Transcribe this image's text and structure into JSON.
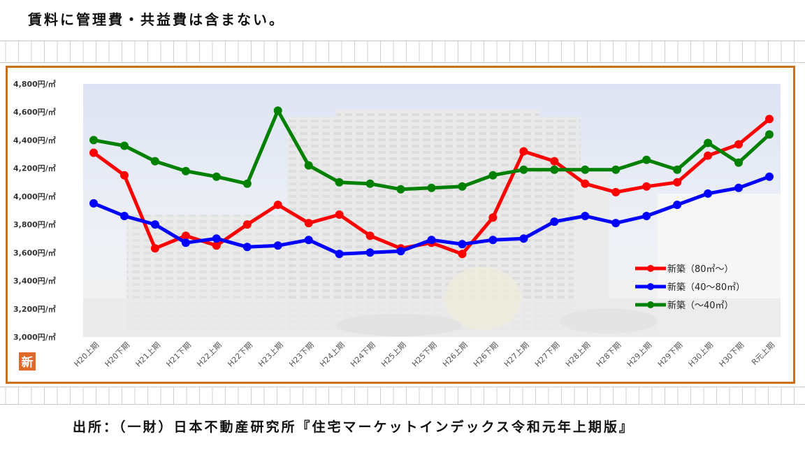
{
  "note": "賃料に管理費・共益費は含まない。",
  "source": "出所：（一財）日本不動産研究所『住宅マーケットインデックス令和元年上期版』",
  "badge": "新",
  "colors": {
    "frame": "#c8701a",
    "badge": "#e06a2a"
  },
  "chart_data": {
    "type": "line",
    "title": "",
    "xlabel": "",
    "ylabel": "",
    "ylim": [
      3000,
      4800
    ],
    "yticks": [
      3000,
      3200,
      3400,
      3600,
      3800,
      4000,
      4200,
      4400,
      4600,
      4800
    ],
    "ytick_labels": [
      "3,000円/㎡",
      "3,200円/㎡",
      "3,400円/㎡",
      "3,600円/㎡",
      "3,800円/㎡",
      "4,000円/㎡",
      "4,200円/㎡",
      "4,400円/㎡",
      "4,600円/㎡",
      "4,800円/㎡"
    ],
    "categories": [
      "H20上期",
      "H20下期",
      "H21上期",
      "H21下期",
      "H22上期",
      "H22下期",
      "H23上期",
      "H23下期",
      "H24上期",
      "H24下期",
      "H25上期",
      "H25下期",
      "H26上期",
      "H26下期",
      "H27上期",
      "H27下期",
      "H28上期",
      "H28下期",
      "H29上期",
      "H29下期",
      "H30上期",
      "H30下期",
      "R元上期"
    ],
    "legend_position": "bottom-right",
    "grid": false,
    "series": [
      {
        "name": "新築（80㎡～）",
        "color": "#ff0000",
        "values": [
          4310,
          4150,
          3630,
          3720,
          3650,
          3800,
          3940,
          3810,
          3870,
          3720,
          3630,
          3670,
          3590,
          3850,
          4320,
          4250,
          4090,
          4030,
          4070,
          4100,
          4290,
          4370,
          4550
        ]
      },
      {
        "name": "新築（40～80㎡）",
        "color": "#0000ff",
        "values": [
          3950,
          3860,
          3800,
          3670,
          3700,
          3640,
          3650,
          3690,
          3590,
          3600,
          3610,
          3690,
          3660,
          3690,
          3700,
          3820,
          3860,
          3810,
          3860,
          3940,
          4020,
          4060,
          4140
        ]
      },
      {
        "name": "新築（～40㎡）",
        "color": "#008000",
        "values": [
          4400,
          4360,
          4250,
          4180,
          4140,
          4090,
          4610,
          4220,
          4100,
          4090,
          4050,
          4060,
          4070,
          4150,
          4190,
          4190,
          4190,
          4190,
          4260,
          4190,
          4380,
          4240,
          4440
        ]
      }
    ]
  }
}
